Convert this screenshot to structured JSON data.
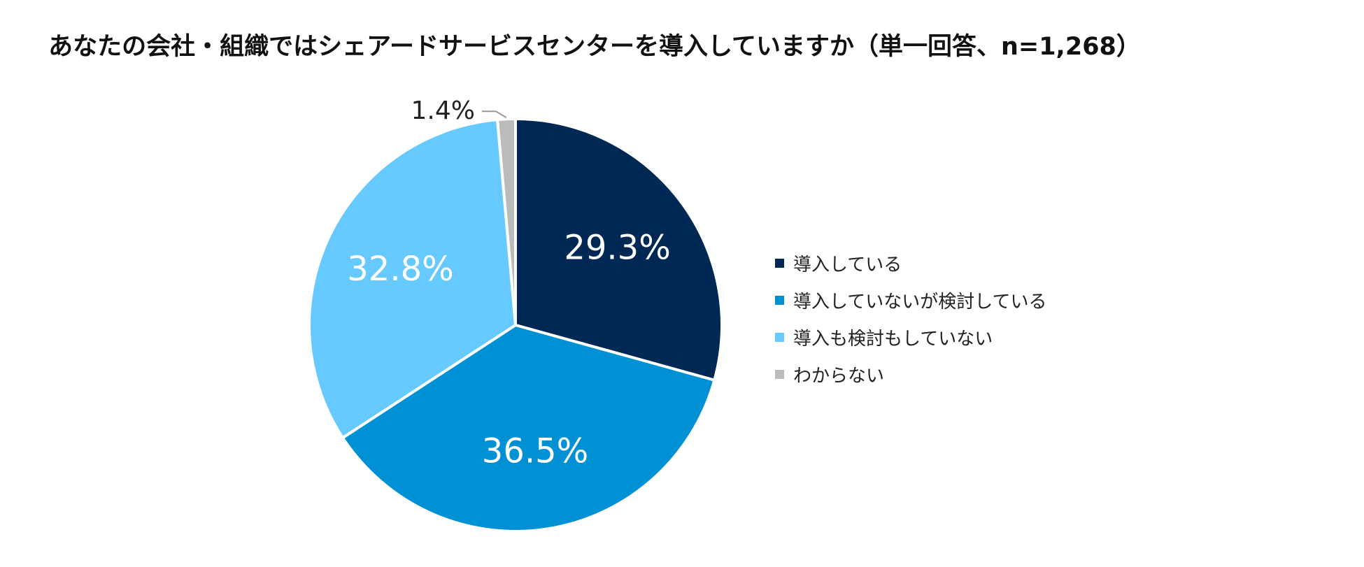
{
  "chart_data": {
    "type": "pie",
    "title": "あなたの会社・組織ではシェアードサービスセンターを導入していますか（単一回答、n=1,268）",
    "start": "12 o'clock",
    "direction": "clockwise",
    "legend_position": "right",
    "slices": [
      {
        "label": "導入している",
        "value": 29.3,
        "display": "29.3%",
        "color": "#002855",
        "text_color": "#ffffff"
      },
      {
        "label": "導入していないが検討している",
        "value": 36.5,
        "display": "36.5%",
        "color": "#0091d5",
        "text_color": "#ffffff"
      },
      {
        "label": "導入も検討もしていない",
        "value": 32.8,
        "display": "32.8%",
        "color": "#66c9ff",
        "text_color": "#ffffff"
      },
      {
        "label": "わからない",
        "value": 1.4,
        "display": "1.4%",
        "color": "#bbbbbb",
        "text_color": "#222222"
      }
    ]
  }
}
